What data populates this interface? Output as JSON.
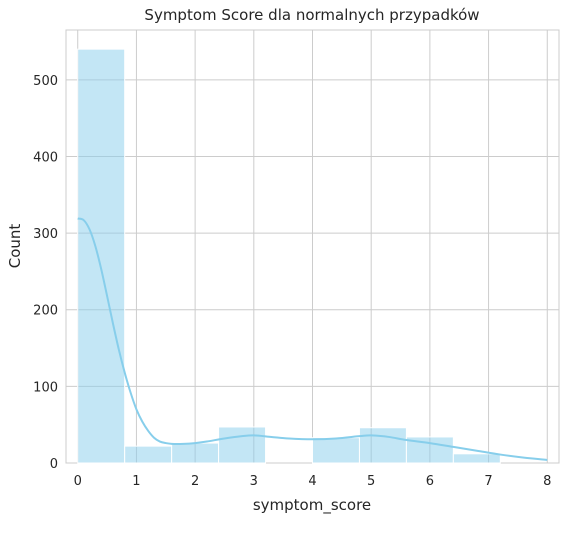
{
  "chart_data": {
    "type": "bar",
    "title": "Symptom Score dla normalnych przypadków",
    "xlabel": "symptom_score",
    "ylabel": "Count",
    "xlim": [
      -0.2,
      8.2
    ],
    "ylim": [
      0,
      565
    ],
    "xticks": [
      0,
      1,
      2,
      3,
      4,
      5,
      6,
      7,
      8
    ],
    "yticks": [
      0,
      100,
      200,
      300,
      400,
      500
    ],
    "grid": true,
    "bar_color": "#87ceeb",
    "bins": [
      {
        "x0": 0.0,
        "x1": 0.8,
        "count": 540
      },
      {
        "x0": 0.8,
        "x1": 1.6,
        "count": 22
      },
      {
        "x0": 1.6,
        "x1": 2.4,
        "count": 26
      },
      {
        "x0": 2.4,
        "x1": 3.2,
        "count": 47
      },
      {
        "x0": 3.2,
        "x1": 4.0,
        "count": 0
      },
      {
        "x0": 4.0,
        "x1": 4.8,
        "count": 33
      },
      {
        "x0": 4.8,
        "x1": 5.6,
        "count": 46
      },
      {
        "x0": 5.6,
        "x1": 6.4,
        "count": 34
      },
      {
        "x0": 6.4,
        "x1": 7.2,
        "count": 12
      },
      {
        "x0": 7.2,
        "x1": 8.0,
        "count": 0
      }
    ],
    "kde": {
      "x": [
        0.0,
        0.1,
        0.2,
        0.3,
        0.4,
        0.5,
        0.6,
        0.7,
        0.8,
        0.9,
        1.0,
        1.1,
        1.2,
        1.3,
        1.4,
        1.5,
        1.6,
        1.8,
        2.0,
        2.2,
        2.5,
        2.8,
        3.0,
        3.3,
        3.6,
        4.0,
        4.4,
        4.8,
        5.0,
        5.3,
        5.6,
        6.0,
        6.4,
        6.8,
        7.2,
        7.6,
        8.0
      ],
      "y": [
        319,
        317,
        305,
        283,
        253,
        218,
        182,
        148,
        118,
        92,
        70,
        54,
        42,
        33,
        28,
        26,
        25,
        25,
        26,
        28,
        32,
        35,
        36,
        34,
        32,
        31,
        32,
        35,
        36,
        34,
        30,
        26,
        21,
        16,
        11,
        7,
        4
      ]
    }
  }
}
